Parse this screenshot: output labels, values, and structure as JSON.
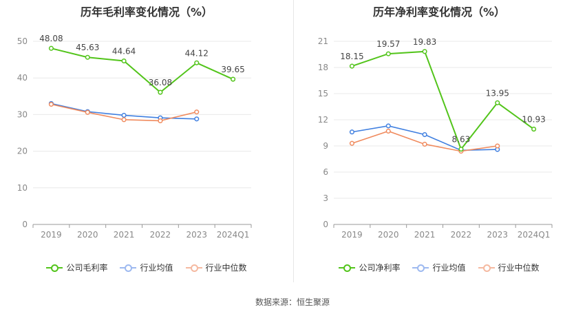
{
  "source_text": "数据来源：恒生聚源",
  "chart_data": [
    {
      "type": "line",
      "title": "历年毛利率变化情况（%）",
      "categories": [
        "2019",
        "2020",
        "2021",
        "2022",
        "2023",
        "2024Q1"
      ],
      "ylim": [
        0,
        50
      ],
      "yticks": [
        0,
        10,
        20,
        30,
        40,
        50
      ],
      "grid": true,
      "legend_position": "bottom",
      "series": [
        {
          "name": "公司毛利率",
          "color": "#52c41a",
          "values": [
            48.08,
            45.63,
            44.64,
            36.08,
            44.12,
            39.65
          ],
          "labels": true,
          "emphasis": true
        },
        {
          "name": "行业均值",
          "color": "#3f7fe0",
          "values": [
            33.0,
            30.8,
            29.8,
            29.1,
            28.8,
            null
          ],
          "labels": false
        },
        {
          "name": "行业中位数",
          "color": "#f08a5d",
          "values": [
            32.8,
            30.6,
            28.6,
            28.3,
            30.7,
            null
          ],
          "labels": false
        }
      ]
    },
    {
      "type": "line",
      "title": "历年净利率变化情况（%）",
      "categories": [
        "2019",
        "2020",
        "2021",
        "2022",
        "2023",
        "2024Q1"
      ],
      "ylim": [
        0,
        21
      ],
      "yticks": [
        0,
        3,
        6,
        9,
        12,
        15,
        18,
        21
      ],
      "grid": true,
      "legend_position": "bottom",
      "series": [
        {
          "name": "公司净利率",
          "color": "#52c41a",
          "values": [
            18.15,
            19.57,
            19.83,
            8.63,
            13.95,
            10.93
          ],
          "labels": true,
          "emphasis": true
        },
        {
          "name": "行业均值",
          "color": "#3f7fe0",
          "values": [
            10.6,
            11.3,
            10.3,
            8.5,
            8.6,
            null
          ],
          "labels": false
        },
        {
          "name": "行业中位数",
          "color": "#f08a5d",
          "values": [
            9.3,
            10.7,
            9.2,
            8.4,
            9.0,
            null
          ],
          "labels": false
        }
      ]
    }
  ]
}
